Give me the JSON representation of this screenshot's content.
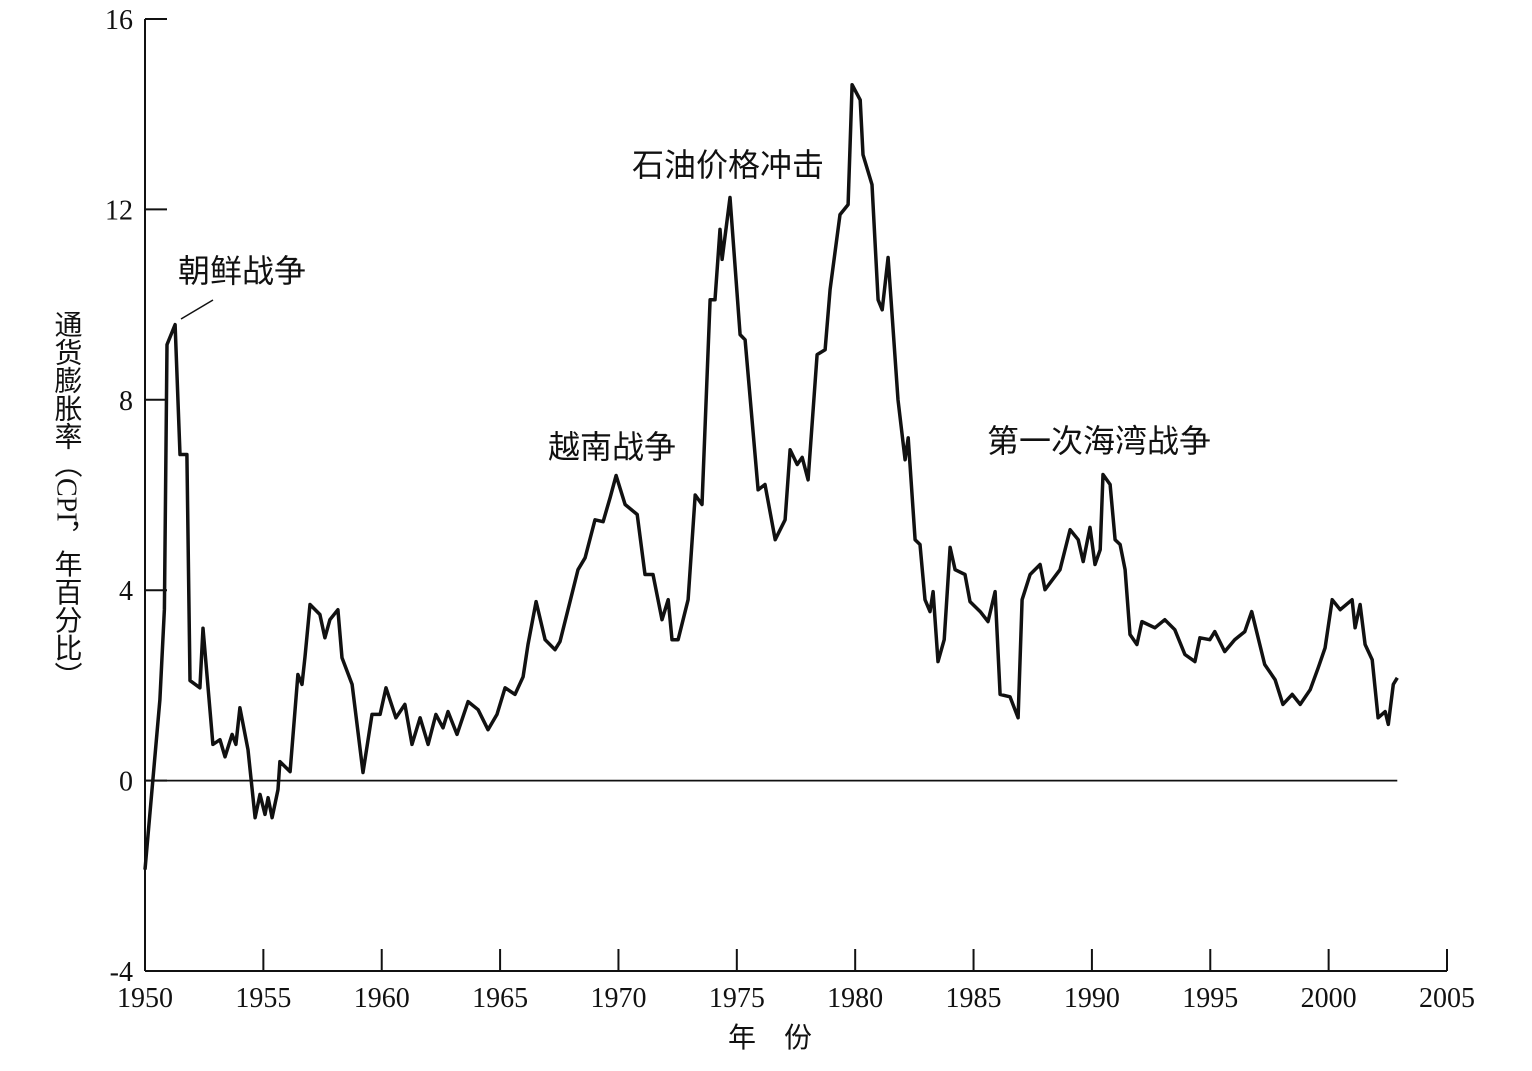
{
  "chart_data": {
    "type": "line",
    "x_label": "年　份",
    "y_label": "通货膨胀率（CPI，年百分比）",
    "xlim": [
      1950,
      2005
    ],
    "xticks": [
      1950,
      1955,
      1960,
      1965,
      1970,
      1975,
      1980,
      1985,
      1990,
      1995,
      2000,
      2005
    ],
    "ylim": [
      -4,
      16
    ],
    "yticks": [
      -4,
      0,
      4,
      8,
      12,
      16
    ],
    "annotations": [
      "朝鲜战争",
      "越南战争",
      "石油价格冲击",
      "第一次海湾战争"
    ],
    "x": [
      1950.0,
      1950.63,
      1950.82,
      1950.93,
      1951.27,
      1951.48,
      1951.77,
      1951.9,
      1952.32,
      1952.45,
      1952.87,
      1953.17,
      1953.38,
      1953.68,
      1953.84,
      1954.01,
      1954.35,
      1954.65,
      1954.86,
      1955.07,
      1955.2,
      1955.37,
      1955.62,
      1955.7,
      1956.13,
      1956.46,
      1956.63,
      1956.76,
      1956.97,
      1957.39,
      1957.6,
      1957.81,
      1958.15,
      1958.32,
      1958.75,
      1959.21,
      1959.59,
      1959.93,
      1960.18,
      1960.6,
      1960.98,
      1961.28,
      1961.62,
      1961.96,
      1962.29,
      1962.59,
      1962.8,
      1963.18,
      1963.65,
      1964.07,
      1964.49,
      1964.87,
      1965.21,
      1965.63,
      1965.97,
      1966.18,
      1966.52,
      1966.9,
      1967.32,
      1967.53,
      1967.87,
      1968.29,
      1968.59,
      1969.01,
      1969.35,
      1969.65,
      1969.9,
      1970.28,
      1970.79,
      1971.12,
      1971.46,
      1971.84,
      1972.1,
      1972.26,
      1972.52,
      1972.94,
      1973.24,
      1973.53,
      1973.87,
      1974.08,
      1974.29,
      1974.38,
      1974.71,
      1975.14,
      1975.35,
      1975.9,
      1976.19,
      1976.62,
      1977.04,
      1977.25,
      1977.55,
      1977.76,
      1978.01,
      1978.39,
      1978.73,
      1978.94,
      1979.36,
      1979.7,
      1979.87,
      1980.21,
      1980.33,
      1980.71,
      1980.97,
      1981.14,
      1981.39,
      1981.81,
      1982.11,
      1982.24,
      1982.53,
      1982.74,
      1982.95,
      1983.16,
      1983.29,
      1983.5,
      1983.76,
      1984.01,
      1984.22,
      1984.64,
      1984.85,
      1985.28,
      1985.61,
      1985.91,
      1986.12,
      1986.54,
      1986.88,
      1987.05,
      1987.39,
      1987.81,
      1988.02,
      1988.65,
      1989.08,
      1989.42,
      1989.63,
      1989.92,
      1990.13,
      1990.35,
      1990.47,
      1990.77,
      1990.98,
      1991.19,
      1991.4,
      1991.61,
      1991.9,
      1992.11,
      1992.66,
      1993.08,
      1993.5,
      1993.93,
      1994.35,
      1994.56,
      1994.98,
      1995.19,
      1995.61,
      1996.03,
      1996.46,
      1996.75,
      1997.3,
      1997.74,
      1998.07,
      1998.46,
      1998.8,
      1999.22,
      1999.56,
      1999.85,
      2000.15,
      2000.49,
      2000.99,
      2001.12,
      2001.33,
      2001.54,
      2001.84,
      2002.09,
      2002.39,
      2002.52,
      2002.73,
      2002.9
    ],
    "series": [
      {
        "color": "#111111",
        "values": [
          -1.87,
          1.7,
          3.6,
          9.16,
          9.58,
          6.85,
          6.85,
          2.1,
          1.95,
          3.2,
          0.76,
          0.86,
          0.5,
          0.97,
          0.76,
          1.53,
          0.65,
          -0.78,
          -0.29,
          -0.71,
          -0.36,
          -0.78,
          -0.19,
          0.4,
          0.19,
          2.23,
          2.02,
          2.6,
          3.7,
          3.49,
          3.0,
          3.38,
          3.59,
          2.58,
          2.02,
          0.17,
          1.39,
          1.39,
          1.95,
          1.32,
          1.6,
          0.76,
          1.32,
          0.76,
          1.39,
          1.11,
          1.45,
          0.97,
          1.66,
          1.49,
          1.07,
          1.39,
          1.95,
          1.81,
          2.18,
          2.86,
          3.76,
          2.96,
          2.75,
          2.92,
          3.59,
          4.43,
          4.68,
          5.48,
          5.44,
          5.95,
          6.41,
          5.8,
          5.59,
          4.33,
          4.33,
          3.38,
          3.8,
          2.96,
          2.96,
          3.8,
          6.0,
          5.8,
          10.1,
          10.1,
          11.58,
          10.95,
          12.25,
          9.37,
          9.26,
          6.11,
          6.22,
          5.06,
          5.48,
          6.95,
          6.64,
          6.79,
          6.32,
          8.95,
          9.05,
          10.32,
          11.89,
          12.1,
          14.62,
          14.3,
          13.15,
          12.52,
          10.1,
          9.89,
          10.99,
          8.0,
          6.74,
          7.2,
          5.06,
          4.96,
          3.8,
          3.55,
          3.97,
          2.5,
          2.96,
          4.9,
          4.43,
          4.33,
          3.76,
          3.55,
          3.34,
          3.97,
          1.81,
          1.76,
          1.32,
          3.8,
          4.33,
          4.54,
          4.01,
          4.43,
          5.27,
          5.06,
          4.6,
          5.32,
          4.54,
          4.85,
          6.43,
          6.22,
          5.06,
          4.96,
          4.43,
          3.07,
          2.86,
          3.34,
          3.21,
          3.38,
          3.17,
          2.65,
          2.5,
          3.0,
          2.96,
          3.13,
          2.71,
          2.96,
          3.13,
          3.55,
          2.44,
          2.12,
          1.6,
          1.81,
          1.6,
          1.91,
          2.37,
          2.79,
          3.8,
          3.59,
          3.8,
          3.21,
          3.7,
          2.86,
          2.54,
          1.32,
          1.45,
          1.18,
          2.02,
          2.16
        ]
      }
    ]
  }
}
